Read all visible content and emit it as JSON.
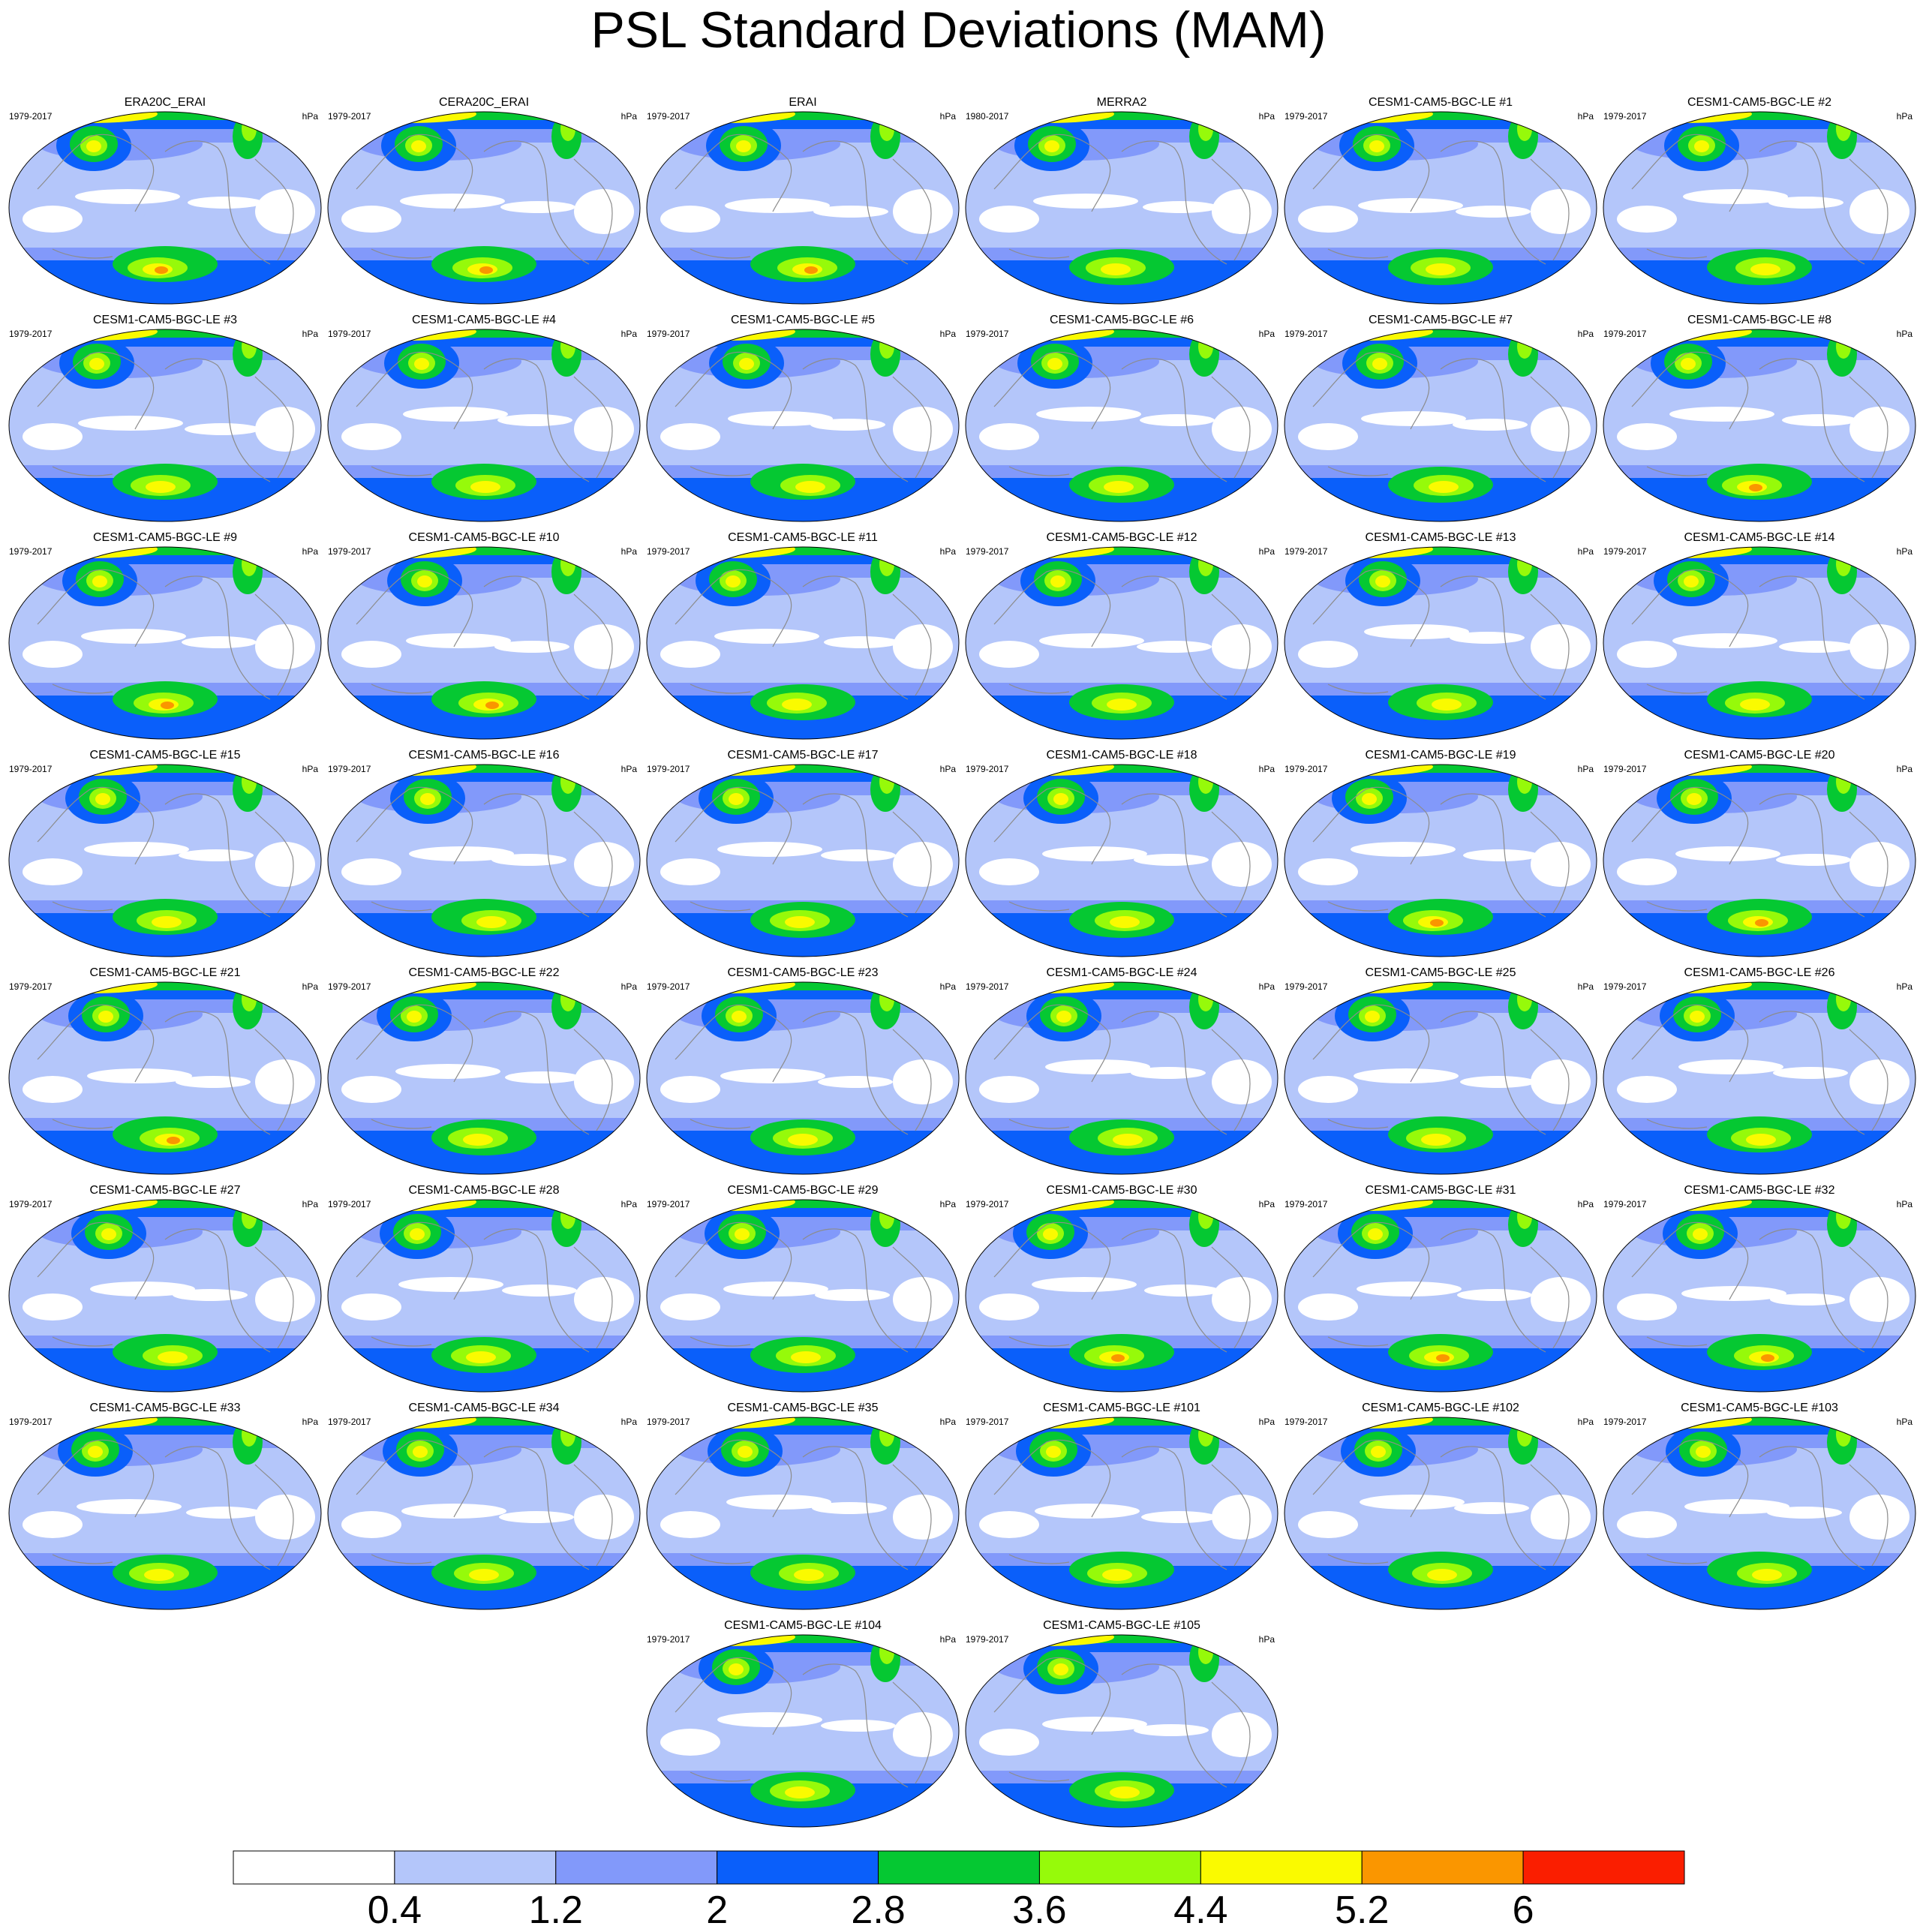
{
  "title": "PSL Standard Deviations (MAM)",
  "panels": [
    {
      "title": "ERA20C_ERAI",
      "period": "1979-2017",
      "units": "hPa"
    },
    {
      "title": "CERA20C_ERAI",
      "period": "1979-2017",
      "units": "hPa"
    },
    {
      "title": "ERAI",
      "period": "1979-2017",
      "units": "hPa"
    },
    {
      "title": "MERRA2",
      "period": "1980-2017",
      "units": "hPa"
    },
    {
      "title": "CESM1-CAM5-BGC-LE #1",
      "period": "1979-2017",
      "units": "hPa"
    },
    {
      "title": "CESM1-CAM5-BGC-LE #2",
      "period": "1979-2017",
      "units": "hPa"
    },
    {
      "title": "CESM1-CAM5-BGC-LE #3",
      "period": "1979-2017",
      "units": "hPa"
    },
    {
      "title": "CESM1-CAM5-BGC-LE #4",
      "period": "1979-2017",
      "units": "hPa"
    },
    {
      "title": "CESM1-CAM5-BGC-LE #5",
      "period": "1979-2017",
      "units": "hPa"
    },
    {
      "title": "CESM1-CAM5-BGC-LE #6",
      "period": "1979-2017",
      "units": "hPa"
    },
    {
      "title": "CESM1-CAM5-BGC-LE #7",
      "period": "1979-2017",
      "units": "hPa"
    },
    {
      "title": "CESM1-CAM5-BGC-LE #8",
      "period": "1979-2017",
      "units": "hPa"
    },
    {
      "title": "CESM1-CAM5-BGC-LE #9",
      "period": "1979-2017",
      "units": "hPa"
    },
    {
      "title": "CESM1-CAM5-BGC-LE #10",
      "period": "1979-2017",
      "units": "hPa"
    },
    {
      "title": "CESM1-CAM5-BGC-LE #11",
      "period": "1979-2017",
      "units": "hPa"
    },
    {
      "title": "CESM1-CAM5-BGC-LE #12",
      "period": "1979-2017",
      "units": "hPa"
    },
    {
      "title": "CESM1-CAM5-BGC-LE #13",
      "period": "1979-2017",
      "units": "hPa"
    },
    {
      "title": "CESM1-CAM5-BGC-LE #14",
      "period": "1979-2017",
      "units": "hPa"
    },
    {
      "title": "CESM1-CAM5-BGC-LE #15",
      "period": "1979-2017",
      "units": "hPa"
    },
    {
      "title": "CESM1-CAM5-BGC-LE #16",
      "period": "1979-2017",
      "units": "hPa"
    },
    {
      "title": "CESM1-CAM5-BGC-LE #17",
      "period": "1979-2017",
      "units": "hPa"
    },
    {
      "title": "CESM1-CAM5-BGC-LE #18",
      "period": "1979-2017",
      "units": "hPa"
    },
    {
      "title": "CESM1-CAM5-BGC-LE #19",
      "period": "1979-2017",
      "units": "hPa"
    },
    {
      "title": "CESM1-CAM5-BGC-LE #20",
      "period": "1979-2017",
      "units": "hPa"
    },
    {
      "title": "CESM1-CAM5-BGC-LE #21",
      "period": "1979-2017",
      "units": "hPa"
    },
    {
      "title": "CESM1-CAM5-BGC-LE #22",
      "period": "1979-2017",
      "units": "hPa"
    },
    {
      "title": "CESM1-CAM5-BGC-LE #23",
      "period": "1979-2017",
      "units": "hPa"
    },
    {
      "title": "CESM1-CAM5-BGC-LE #24",
      "period": "1979-2017",
      "units": "hPa"
    },
    {
      "title": "CESM1-CAM5-BGC-LE #25",
      "period": "1979-2017",
      "units": "hPa"
    },
    {
      "title": "CESM1-CAM5-BGC-LE #26",
      "period": "1979-2017",
      "units": "hPa"
    },
    {
      "title": "CESM1-CAM5-BGC-LE #27",
      "period": "1979-2017",
      "units": "hPa"
    },
    {
      "title": "CESM1-CAM5-BGC-LE #28",
      "period": "1979-2017",
      "units": "hPa"
    },
    {
      "title": "CESM1-CAM5-BGC-LE #29",
      "period": "1979-2017",
      "units": "hPa"
    },
    {
      "title": "CESM1-CAM5-BGC-LE #30",
      "period": "1979-2017",
      "units": "hPa"
    },
    {
      "title": "CESM1-CAM5-BGC-LE #31",
      "period": "1979-2017",
      "units": "hPa"
    },
    {
      "title": "CESM1-CAM5-BGC-LE #32",
      "period": "1979-2017",
      "units": "hPa"
    },
    {
      "title": "CESM1-CAM5-BGC-LE #33",
      "period": "1979-2017",
      "units": "hPa"
    },
    {
      "title": "CESM1-CAM5-BGC-LE #34",
      "period": "1979-2017",
      "units": "hPa"
    },
    {
      "title": "CESM1-CAM5-BGC-LE #35",
      "period": "1979-2017",
      "units": "hPa"
    },
    {
      "title": "CESM1-CAM5-BGC-LE #101",
      "period": "1979-2017",
      "units": "hPa"
    },
    {
      "title": "CESM1-CAM5-BGC-LE #102",
      "period": "1979-2017",
      "units": "hPa"
    },
    {
      "title": "CESM1-CAM5-BGC-LE #103",
      "period": "1979-2017",
      "units": "hPa"
    },
    {
      "title": "CESM1-CAM5-BGC-LE #104",
      "period": "1979-2017",
      "units": "hPa"
    },
    {
      "title": "CESM1-CAM5-BGC-LE #105",
      "period": "1979-2017",
      "units": "hPa"
    }
  ],
  "chart_data": {
    "type": "heatmap",
    "title": "PSL Standard Deviations (MAM)",
    "units": "hPa",
    "levels": [
      0.4,
      1.2,
      2,
      2.8,
      3.6,
      4.4,
      5.2,
      6
    ],
    "level_labels": [
      "0.4",
      "1.2",
      "2",
      "2.8",
      "3.6",
      "4.4",
      "5.2",
      "6"
    ],
    "colors": [
      "#ffffff",
      "#b4c6fa",
      "#8299fa",
      "#0a5ffa",
      "#05c832",
      "#96fa0a",
      "#fafa00",
      "#fa9600",
      "#fa1e00"
    ],
    "legend_position": "bottom",
    "projection": "global ellipse (Pacific-centered)"
  }
}
